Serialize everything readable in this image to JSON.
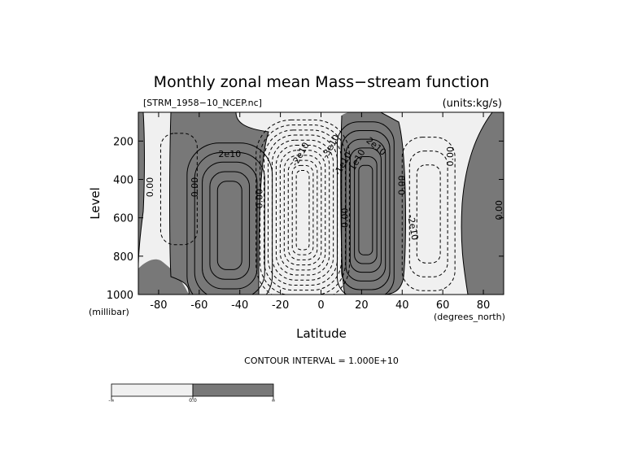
{
  "chart_data": {
    "type": "contour",
    "title": "Monthly zonal mean Mass−stream function",
    "file_label": "[STRM_1958−10_NCEP.nc]",
    "units_label": "(units:kg/s)",
    "xlabel": "Latitude",
    "ylabel": "Level",
    "x_unit_label": "(degrees_north)",
    "y_unit_label": "(millibar)",
    "xlim": [
      -90,
      90
    ],
    "ylim": [
      1000,
      50
    ],
    "x_ticks": [
      {
        "value": -80,
        "label": "-80"
      },
      {
        "value": -60,
        "label": "-60"
      },
      {
        "value": -40,
        "label": "-40"
      },
      {
        "value": -20,
        "label": "-20"
      },
      {
        "value": 0,
        "label": "0"
      },
      {
        "value": 20,
        "label": "20"
      },
      {
        "value": 40,
        "label": "40"
      },
      {
        "value": 60,
        "label": "60"
      },
      {
        "value": 80,
        "label": "80"
      }
    ],
    "y_ticks": [
      {
        "value": 200,
        "label": "200"
      },
      {
        "value": 400,
        "label": "400"
      },
      {
        "value": 600,
        "label": "600"
      },
      {
        "value": 800,
        "label": "800"
      },
      {
        "value": 1000,
        "label": "1000"
      }
    ],
    "contour_interval_label": "CONTOUR INTERVAL = 1.000E+10",
    "cells": [
      {
        "name": "southern-positive-cell",
        "lat": -45,
        "lev": 640,
        "half_width": 21,
        "half_height": 430,
        "levels": 5,
        "sign": "positive"
      },
      {
        "name": "southern-negative-cell",
        "lat": -70,
        "lev": 450,
        "half_width": 9,
        "half_height": 290,
        "levels": 1,
        "sign": "negative"
      },
      {
        "name": "tropical-negative-cell",
        "lat": -9,
        "lev": 560,
        "half_width": 23,
        "half_height": 470,
        "levels": 11,
        "sign": "negative"
      },
      {
        "name": "northern-positive-cell",
        "lat": 22,
        "lev": 560,
        "half_width": 14,
        "half_height": 460,
        "levels": 6,
        "sign": "positive"
      },
      {
        "name": "northern-negative-cell",
        "lat": 53,
        "lev": 580,
        "half_width": 13,
        "half_height": 400,
        "levels": 3,
        "sign": "negative"
      }
    ],
    "contour_labels": [
      {
        "text": "2e10",
        "lat": -45,
        "lev": 270,
        "rotate": 0
      },
      {
        "text": "0.00",
        "lat": -84,
        "lev": 440,
        "rotate": -90
      },
      {
        "text": "0.00",
        "lat": -62,
        "lev": 440,
        "rotate": -90
      },
      {
        "text": "0.00",
        "lat": -30,
        "lev": 500,
        "rotate": -90
      },
      {
        "text": "-2e10",
        "lat": -10,
        "lev": 270,
        "rotate": -60
      },
      {
        "text": "-3e10",
        "lat": 5,
        "lev": 230,
        "rotate": -60
      },
      {
        "text": "-1e10",
        "lat": 11,
        "lev": 320,
        "rotate": -60
      },
      {
        "text": "0.00",
        "lat": 12,
        "lev": 600,
        "rotate": -90
      },
      {
        "text": "2e10",
        "lat": 27,
        "lev": 230,
        "rotate": 40
      },
      {
        "text": "1e10",
        "lat": 18,
        "lev": 300,
        "rotate": -60
      },
      {
        "text": "0.00",
        "lat": 40,
        "lev": 430,
        "rotate": -90
      },
      {
        "text": "-2e10",
        "lat": 45,
        "lev": 650,
        "rotate": 80
      },
      {
        "text": "0.00",
        "lat": 64,
        "lev": 280,
        "rotate": -90
      },
      {
        "text": "0.00",
        "lat": 88,
        "lev": 560,
        "rotate": -90
      }
    ],
    "colorbar": {
      "colors": [
        "#f0f0f0",
        "#787878"
      ],
      "labels": [
        "-∞",
        "0.0",
        "∞"
      ]
    },
    "colors": {
      "positive_fill": "#787878",
      "negative_fill": "#f0f0f0",
      "line": "#000000"
    }
  }
}
